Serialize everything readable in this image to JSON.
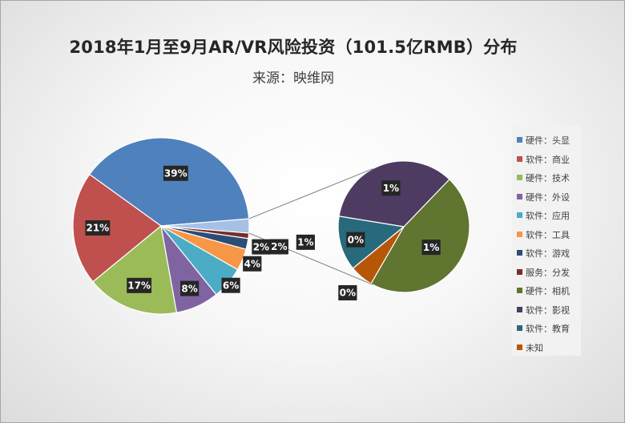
{
  "chart_data": {
    "type": "pie",
    "subtype": "pie-of-pie",
    "title": "2018年1月至9月AR/VR风险投资（101.5亿RMB）分布",
    "subtitle": "来源：映维网",
    "legend_position": "right",
    "slices": [
      {
        "name": "硬件：头显",
        "label": "39%",
        "value": 39,
        "color": "#4f81bd"
      },
      {
        "name": "软件：商业",
        "label": "21%",
        "value": 21,
        "color": "#c0504d"
      },
      {
        "name": "硬件：技术",
        "label": "17%",
        "value": 17,
        "color": "#9bbb59"
      },
      {
        "name": "硬件：外设",
        "label": "8%",
        "value": 8,
        "color": "#8064a2"
      },
      {
        "name": "软件：应用",
        "label": "6%",
        "value": 6,
        "color": "#4bacc6"
      },
      {
        "name": "软件：工具",
        "label": "4%",
        "value": 4,
        "color": "#f79646"
      },
      {
        "name": "软件：游戏",
        "label": "2%",
        "value": 2,
        "color": "#2c4d75"
      },
      {
        "name": "服务：分发",
        "label": "1%",
        "value": 1,
        "color": "#772c2a"
      },
      {
        "name": "硬件：相机",
        "label": "1%",
        "value": 1.2,
        "color": "#5f7530"
      },
      {
        "name": "软件：影视",
        "label": "1%",
        "value": 0.9,
        "color": "#4d3b62"
      },
      {
        "name": "软件：教育",
        "label": "0%",
        "value": 0.35,
        "color": "#276a7c"
      },
      {
        "name": "未知",
        "label": "0%",
        "value": 0.15,
        "color": "#b65708"
      }
    ],
    "other_label": "2%",
    "secondary_count": 4
  }
}
